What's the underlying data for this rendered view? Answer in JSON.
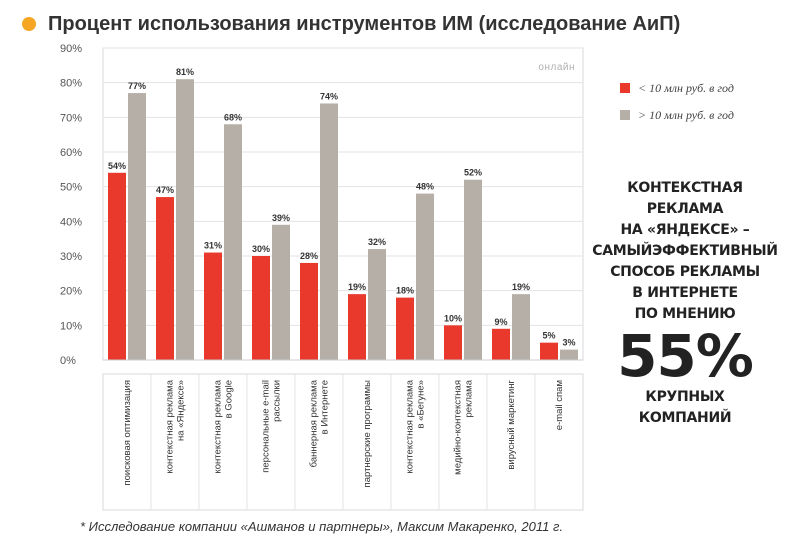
{
  "page": {
    "title": "Процент использования инструментов ИМ (исследование АиП)",
    "bullet_color": "#f5a623",
    "footnote": "* Исследование компании «Ашманов и партнеры», Максим Макаренко, 2011 г."
  },
  "callout": {
    "lines_top": [
      "КОНТЕКСТНАЯ",
      "РЕКЛАМА",
      "НА «ЯНДЕКСЕ» –",
      "САМЫЙЭФФЕКТИВНЫЙ",
      "СПОСОБ РЕКЛАМЫ",
      "В ИНТЕРНЕТЕ",
      "ПО МНЕНИЮ"
    ],
    "big": "55%",
    "lines_bottom": [
      "КРУПНЫХ",
      "КОМПАНИЙ"
    ]
  },
  "chart_data": {
    "type": "bar",
    "title": "Процент использования инструментов ИМ (исследование АиП)",
    "annotation": "онлайн",
    "xlabel": "",
    "ylabel": "",
    "ylim": [
      0,
      90
    ],
    "yticks": [
      "0%",
      "10%",
      "20%",
      "30%",
      "40%",
      "50%",
      "60%",
      "70%",
      "80%",
      "90%"
    ],
    "categories": [
      "поисковая оптимизация",
      "контекстная реклама на «Яндексе»",
      "контекстная реклама в Google",
      "персональные e-mail рассылки",
      "баннерная реклама в Интернете",
      "партнерские программы",
      "контекстная реклама в «Бегуне»",
      "медийно-контекстная реклама",
      "вирусный маркетинг",
      "e-mail спам"
    ],
    "category_lines": [
      [
        "поисковая оптимизация"
      ],
      [
        "контекстная реклама",
        "на «Яндексе»"
      ],
      [
        "контекстная реклама",
        "в Google"
      ],
      [
        "персональные e-mail",
        "рассылки"
      ],
      [
        "баннерная реклама",
        "в Интернете"
      ],
      [
        "партнерские программы"
      ],
      [
        "контекстная реклама",
        "в «Бегуне»"
      ],
      [
        "медийно-контекстная",
        "реклама"
      ],
      [
        "вирусный маркетинг"
      ],
      [
        "e-mail спам"
      ]
    ],
    "series": [
      {
        "name": "< 10 млн руб. в год",
        "color": "#e8392c",
        "values": [
          54,
          47,
          31,
          30,
          28,
          19,
          18,
          10,
          9,
          5
        ]
      },
      {
        "name": "> 10 млн руб. в год",
        "color": "#b5afa8",
        "values": [
          77,
          81,
          68,
          39,
          74,
          32,
          48,
          52,
          19,
          3
        ]
      }
    ],
    "legend_position": "right"
  }
}
